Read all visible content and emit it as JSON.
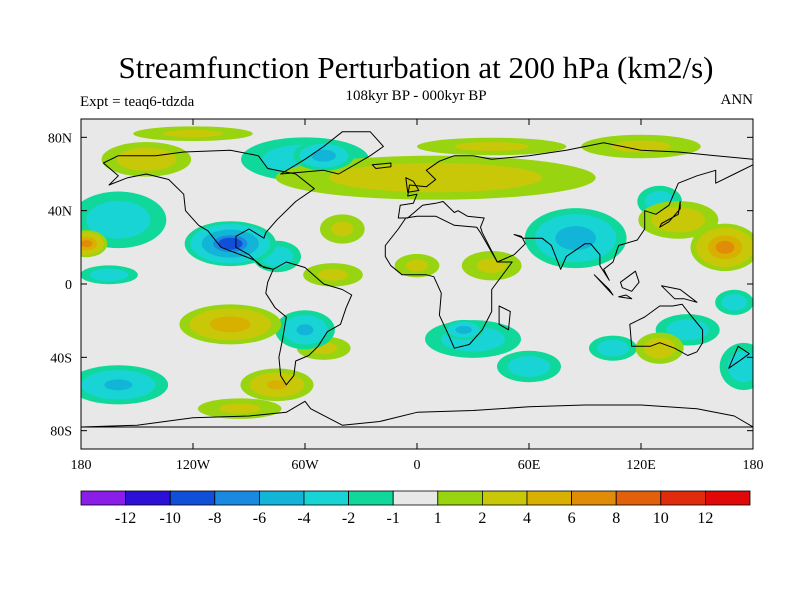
{
  "chart_data": {
    "type": "heatmap",
    "title": "Streamfunction Perturbation at 200 hPa (km2/s)",
    "subtitle": "108kyr BP - 000kyr BP",
    "left_label": "Expt = teaq6-tdzda",
    "right_label": "ANN",
    "x_range": [
      -180,
      180
    ],
    "y_range": [
      -90,
      90
    ],
    "x_ticks": [
      {
        "value": -180,
        "label": "180"
      },
      {
        "value": -120,
        "label": "120W"
      },
      {
        "value": -60,
        "label": "60W"
      },
      {
        "value": 0,
        "label": "0"
      },
      {
        "value": 60,
        "label": "60E"
      },
      {
        "value": 120,
        "label": "120E"
      },
      {
        "value": 180,
        "label": "180"
      }
    ],
    "y_ticks": [
      {
        "value": 80,
        "label": "80N"
      },
      {
        "value": 40,
        "label": "40N"
      },
      {
        "value": 0,
        "label": "0"
      },
      {
        "value": -40,
        "label": "40S"
      },
      {
        "value": -80,
        "label": "80S"
      }
    ],
    "colorbar": {
      "levels": [
        -14,
        -12,
        -10,
        -8,
        -6,
        -4,
        -2,
        -1,
        1,
        2,
        4,
        6,
        8,
        10,
        12,
        14
      ],
      "labels": [
        "-12",
        "-10",
        "-8",
        "-6",
        "-4",
        "-2",
        "-1",
        "1",
        "2",
        "4",
        "6",
        "8",
        "10",
        "12"
      ],
      "colors": [
        "#8a1ee8",
        "#2d10d8",
        "#1050d8",
        "#1a8ae0",
        "#12b4d8",
        "#18d4d4",
        "#10d89a",
        "#e8e8e8",
        "#98d410",
        "#c8c808",
        "#d8b000",
        "#e08c08",
        "#e0600c",
        "#e02c0c",
        "#e00808"
      ]
    },
    "features": [
      {
        "center": [
          -60,
          68
        ],
        "radius": [
          40,
          14
        ],
        "value": -3
      },
      {
        "center": [
          -50,
          70
        ],
        "radius": [
          18,
          9
        ],
        "value": -5
      },
      {
        "center": [
          -120,
          82
        ],
        "radius": [
          40,
          5
        ],
        "value": 2
      },
      {
        "center": [
          -145,
          68
        ],
        "radius": [
          28,
          11
        ],
        "value": 3
      },
      {
        "center": [
          -160,
          35
        ],
        "radius": [
          30,
          18
        ],
        "value": -3
      },
      {
        "center": [
          -100,
          22
        ],
        "radius": [
          26,
          13
        ],
        "value": -8
      },
      {
        "center": [
          -75,
          15
        ],
        "radius": [
          15,
          10
        ],
        "value": -3
      },
      {
        "center": [
          -177,
          22
        ],
        "radius": [
          12,
          8
        ],
        "value": 6
      },
      {
        "center": [
          -165,
          5
        ],
        "radius": [
          18,
          6
        ],
        "value": -3
      },
      {
        "center": [
          -100,
          -22
        ],
        "radius": [
          30,
          12
        ],
        "value": 5
      },
      {
        "center": [
          -60,
          -25
        ],
        "radius": [
          18,
          12
        ],
        "value": -4
      },
      {
        "center": [
          -50,
          -35
        ],
        "radius": [
          18,
          8
        ],
        "value": 2
      },
      {
        "center": [
          -160,
          -55
        ],
        "radius": [
          30,
          12
        ],
        "value": -4
      },
      {
        "center": [
          -75,
          -55
        ],
        "radius": [
          22,
          10
        ],
        "value": 4
      },
      {
        "center": [
          -95,
          -68
        ],
        "radius": [
          28,
          7
        ],
        "value": 2
      },
      {
        "center": [
          -45,
          5
        ],
        "radius": [
          20,
          8
        ],
        "value": 2
      },
      {
        "center": [
          -40,
          30
        ],
        "radius": [
          15,
          10
        ],
        "value": 2
      },
      {
        "center": [
          10,
          58
        ],
        "radius": [
          100,
          14
        ],
        "value": 3
      },
      {
        "center": [
          40,
          75
        ],
        "radius": [
          50,
          6
        ],
        "value": 2
      },
      {
        "center": [
          120,
          75
        ],
        "radius": [
          40,
          8
        ],
        "value": 2
      },
      {
        "center": [
          0,
          10
        ],
        "radius": [
          15,
          8
        ],
        "value": 2
      },
      {
        "center": [
          40,
          10
        ],
        "radius": [
          20,
          10
        ],
        "value": 2
      },
      {
        "center": [
          85,
          25
        ],
        "radius": [
          30,
          18
        ],
        "value": -5
      },
      {
        "center": [
          130,
          45
        ],
        "radius": [
          14,
          10
        ],
        "value": -3
      },
      {
        "center": [
          165,
          20
        ],
        "radius": [
          20,
          14
        ],
        "value": 6
      },
      {
        "center": [
          140,
          35
        ],
        "radius": [
          25,
          12
        ],
        "value": 3
      },
      {
        "center": [
          30,
          -30
        ],
        "radius": [
          30,
          12
        ],
        "value": -3
      },
      {
        "center": [
          25,
          -25
        ],
        "radius": [
          12,
          6
        ],
        "value": -5
      },
      {
        "center": [
          60,
          -45
        ],
        "radius": [
          20,
          10
        ],
        "value": -3
      },
      {
        "center": [
          105,
          -35
        ],
        "radius": [
          15,
          8
        ],
        "value": -3
      },
      {
        "center": [
          145,
          -25
        ],
        "radius": [
          20,
          10
        ],
        "value": -3
      },
      {
        "center": [
          130,
          -35
        ],
        "radius": [
          15,
          10
        ],
        "value": 3
      },
      {
        "center": [
          175,
          -45
        ],
        "radius": [
          15,
          15
        ],
        "value": -3
      },
      {
        "center": [
          170,
          -10
        ],
        "radius": [
          12,
          8
        ],
        "value": -3
      }
    ],
    "continents": [
      [
        [
          -168,
          66
        ],
        [
          -160,
          70
        ],
        [
          -140,
          70
        ],
        [
          -125,
          72
        ],
        [
          -100,
          73
        ],
        [
          -85,
          70
        ],
        [
          -80,
          63
        ],
        [
          -65,
          60
        ],
        [
          -55,
          52
        ],
        [
          -65,
          45
        ],
        [
          -75,
          35
        ],
        [
          -81,
          28
        ],
        [
          -82,
          25
        ],
        [
          -90,
          30
        ],
        [
          -97,
          26
        ],
        [
          -97,
          20
        ],
        [
          -90,
          16
        ],
        [
          -84,
          10
        ],
        [
          -77,
          8
        ],
        [
          -82,
          9
        ],
        [
          -87,
          13
        ],
        [
          -92,
          15
        ],
        [
          -105,
          20
        ],
        [
          -112,
          29
        ],
        [
          -117,
          32
        ],
        [
          -124,
          40
        ],
        [
          -125,
          49
        ],
        [
          -133,
          57
        ],
        [
          -145,
          60
        ],
        [
          -155,
          58
        ],
        [
          -165,
          54
        ],
        [
          -160,
          59
        ],
        [
          -168,
          66
        ]
      ],
      [
        [
          -77,
          8
        ],
        [
          -70,
          12
        ],
        [
          -60,
          9
        ],
        [
          -50,
          0
        ],
        [
          -40,
          -3
        ],
        [
          -35,
          -6
        ],
        [
          -38,
          -13
        ],
        [
          -41,
          -22
        ],
        [
          -48,
          -26
        ],
        [
          -53,
          -34
        ],
        [
          -58,
          -39
        ],
        [
          -65,
          -42
        ],
        [
          -66,
          -50
        ],
        [
          -70,
          -55
        ],
        [
          -73,
          -50
        ],
        [
          -74,
          -40
        ],
        [
          -72,
          -30
        ],
        [
          -70,
          -18
        ],
        [
          -76,
          -13
        ],
        [
          -81,
          -5
        ],
        [
          -80,
          1
        ],
        [
          -77,
          8
        ]
      ],
      [
        [
          -17,
          21
        ],
        [
          -10,
          30
        ],
        [
          -6,
          36
        ],
        [
          0,
          37
        ],
        [
          10,
          37
        ],
        [
          20,
          32
        ],
        [
          32,
          31
        ],
        [
          34,
          28
        ],
        [
          43,
          12
        ],
        [
          51,
          12
        ],
        [
          40,
          -3
        ],
        [
          40,
          -15
        ],
        [
          35,
          -25
        ],
        [
          28,
          -33
        ],
        [
          20,
          -35
        ],
        [
          17,
          -28
        ],
        [
          12,
          -17
        ],
        [
          13,
          -5
        ],
        [
          9,
          4
        ],
        [
          5,
          5
        ],
        [
          -8,
          5
        ],
        [
          -14,
          10
        ],
        [
          -17,
          15
        ],
        [
          -17,
          21
        ]
      ],
      [
        [
          -10,
          36
        ],
        [
          -9,
          43
        ],
        [
          -2,
          44
        ],
        [
          0,
          49
        ],
        [
          -5,
          48
        ],
        [
          -4,
          54
        ],
        [
          5,
          53
        ],
        [
          10,
          57
        ],
        [
          5,
          62
        ],
        [
          12,
          67
        ],
        [
          20,
          70
        ],
        [
          30,
          70
        ],
        [
          40,
          68
        ],
        [
          60,
          70
        ],
        [
          80,
          73
        ],
        [
          100,
          77
        ],
        [
          120,
          73
        ],
        [
          140,
          72
        ],
        [
          160,
          70
        ],
        [
          180,
          68
        ],
        [
          180,
          65
        ],
        [
          170,
          60
        ],
        [
          160,
          55
        ],
        [
          160,
          62
        ],
        [
          150,
          59
        ],
        [
          140,
          55
        ],
        [
          135,
          43
        ],
        [
          128,
          38
        ],
        [
          122,
          40
        ],
        [
          122,
          30
        ],
        [
          118,
          24
        ],
        [
          108,
          21
        ],
        [
          105,
          12
        ],
        [
          100,
          8
        ],
        [
          103,
          2
        ],
        [
          98,
          10
        ],
        [
          98,
          16
        ],
        [
          93,
          22
        ],
        [
          90,
          22
        ],
        [
          80,
          15
        ],
        [
          77,
          8
        ],
        [
          72,
          21
        ],
        [
          67,
          25
        ],
        [
          57,
          25
        ],
        [
          52,
          27
        ],
        [
          56,
          26
        ],
        [
          58,
          22
        ],
        [
          52,
          16
        ],
        [
          43,
          12
        ],
        [
          35,
          28
        ],
        [
          34,
          31
        ],
        [
          36,
          36
        ],
        [
          27,
          37
        ],
        [
          22,
          40
        ],
        [
          20,
          39
        ],
        [
          14,
          45
        ],
        [
          10,
          44
        ],
        [
          3,
          43
        ],
        [
          -5,
          36
        ],
        [
          -10,
          36
        ]
      ],
      [
        [
          114,
          -22
        ],
        [
          122,
          -18
        ],
        [
          130,
          -12
        ],
        [
          137,
          -12
        ],
        [
          142,
          -11
        ],
        [
          145,
          -15
        ],
        [
          153,
          -25
        ],
        [
          153,
          -32
        ],
        [
          150,
          -37
        ],
        [
          145,
          -39
        ],
        [
          138,
          -35
        ],
        [
          130,
          -32
        ],
        [
          125,
          -34
        ],
        [
          115,
          -34
        ],
        [
          114,
          -22
        ]
      ],
      [
        [
          -73,
          60
        ],
        [
          -60,
          68
        ],
        [
          -50,
          75
        ],
        [
          -40,
          83
        ],
        [
          -25,
          83
        ],
        [
          -18,
          75
        ],
        [
          -25,
          70
        ],
        [
          -42,
          60
        ],
        [
          -50,
          62
        ],
        [
          -73,
          60
        ]
      ],
      [
        [
          -180,
          -78
        ],
        [
          -150,
          -77
        ],
        [
          -120,
          -73
        ],
        [
          -90,
          -72
        ],
        [
          -70,
          -70
        ],
        [
          -60,
          -64
        ],
        [
          -57,
          -68
        ],
        [
          -40,
          -77
        ],
        [
          -20,
          -75
        ],
        [
          0,
          -70
        ],
        [
          30,
          -69
        ],
        [
          60,
          -67
        ],
        [
          90,
          -66
        ],
        [
          120,
          -66
        ],
        [
          150,
          -68
        ],
        [
          170,
          -72
        ],
        [
          180,
          -78
        ]
      ],
      [
        [
          -5,
          50
        ],
        [
          1,
          51
        ],
        [
          -2,
          56
        ],
        [
          -6,
          58
        ],
        [
          -5,
          50
        ]
      ],
      [
        [
          44,
          -12
        ],
        [
          50,
          -15
        ],
        [
          49,
          -25
        ],
        [
          44,
          -22
        ],
        [
          44,
          -12
        ]
      ],
      [
        [
          130,
          31
        ],
        [
          135,
          34
        ],
        [
          141,
          41
        ],
        [
          141,
          45
        ],
        [
          140,
          38
        ],
        [
          131,
          33
        ],
        [
          130,
          31
        ]
      ],
      [
        [
          95,
          5
        ],
        [
          105,
          -6
        ],
        [
          103,
          -3
        ],
        [
          95,
          5
        ]
      ],
      [
        [
          108,
          -7
        ],
        [
          115,
          -8
        ],
        [
          112,
          -6
        ],
        [
          108,
          -7
        ]
      ],
      [
        [
          109,
          1
        ],
        [
          117,
          7
        ],
        [
          119,
          1
        ],
        [
          115,
          -4
        ],
        [
          110,
          -2
        ],
        [
          109,
          1
        ]
      ],
      [
        [
          131,
          -1
        ],
        [
          141,
          -3
        ],
        [
          150,
          -10
        ],
        [
          143,
          -8
        ],
        [
          138,
          -8
        ],
        [
          131,
          -1
        ]
      ],
      [
        [
          167,
          -46
        ],
        [
          174,
          -41
        ],
        [
          178,
          -38
        ],
        [
          172,
          -34
        ],
        [
          167,
          -46
        ]
      ],
      [
        [
          -24,
          65
        ],
        [
          -14,
          66
        ],
        [
          -14,
          64
        ],
        [
          -22,
          63
        ],
        [
          -24,
          65
        ]
      ]
    ]
  }
}
